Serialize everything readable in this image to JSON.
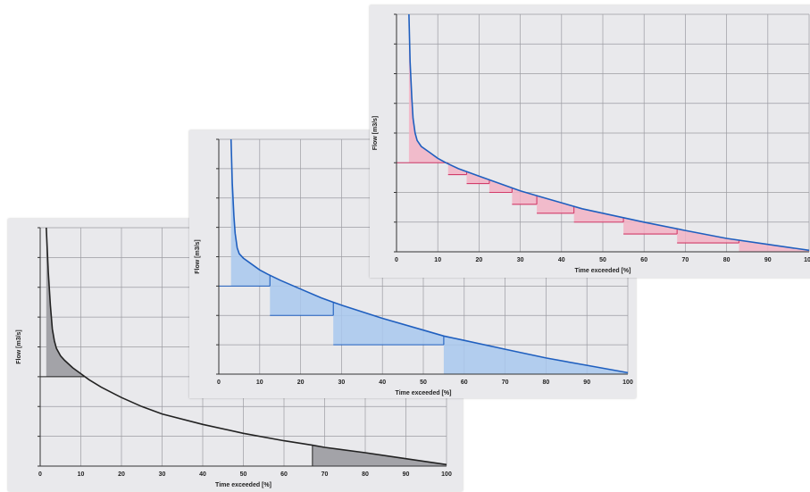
{
  "colors": {
    "panel_bg": "#e9e9ec",
    "curve_gray": "#222222",
    "fill_gray": "#a3a3a8",
    "curve_blue": "#1f5fbf",
    "fill_blue": "#a8c8ee",
    "curve_pink": "#1f5fbf",
    "fill_pink": "#f2b3c6",
    "step_pink": "#d23c6a"
  },
  "chart_data": [
    {
      "id": "chart-gray",
      "type": "line",
      "xlabel": "Time exceeded [%]",
      "ylabel": "Flow [m3/s]",
      "xlim": [
        0,
        100
      ],
      "ylim": [
        0,
        8
      ],
      "x_ticks": [
        "0",
        "10",
        "20",
        "30",
        "40",
        "50",
        "60",
        "70",
        "80",
        "90",
        "100"
      ],
      "grid": true,
      "curve_color_key": "curve_gray",
      "fill_color_key": "fill_gray",
      "series": [
        {
          "x": [
            1.5,
            2,
            2.5,
            3,
            3.5,
            4,
            5,
            6,
            8,
            10,
            12,
            15,
            20,
            25,
            30,
            40,
            50,
            60,
            67,
            70,
            80,
            90,
            100
          ],
          "y": [
            8,
            6.5,
            5.4,
            4.6,
            4.2,
            3.95,
            3.7,
            3.55,
            3.3,
            3.1,
            2.9,
            2.65,
            2.3,
            2.0,
            1.75,
            1.4,
            1.1,
            0.85,
            0.7,
            0.63,
            0.45,
            0.25,
            0.05
          ]
        }
      ],
      "threshold_y": 3.0,
      "marker_x": 67
    },
    {
      "id": "chart-blue",
      "type": "line",
      "xlabel": "Time exceeded [%]",
      "ylabel": "Flow [m3/s]",
      "xlim": [
        0,
        100
      ],
      "ylim": [
        0,
        8
      ],
      "x_ticks": [
        "0",
        "10",
        "20",
        "30",
        "40",
        "50",
        "60",
        "70",
        "80",
        "90",
        "100"
      ],
      "grid": true,
      "curve_color_key": "curve_blue",
      "fill_color_key": "fill_blue",
      "series": [
        {
          "x": [
            3,
            3.3,
            3.7,
            4,
            4.5,
            5,
            6,
            8,
            10,
            12,
            15,
            20,
            25,
            28,
            30,
            40,
            50,
            55,
            60,
            70,
            80,
            90,
            100
          ],
          "y": [
            8,
            6.5,
            5.4,
            4.8,
            4.3,
            4.1,
            3.95,
            3.75,
            3.55,
            3.4,
            3.2,
            2.9,
            2.6,
            2.45,
            2.35,
            1.9,
            1.5,
            1.3,
            1.15,
            0.85,
            0.55,
            0.3,
            0.05
          ]
        }
      ],
      "steps": [
        {
          "x0": 0,
          "x1": 12.5,
          "y": 3.0
        },
        {
          "x0": 12.5,
          "x1": 28,
          "y": 2.0
        },
        {
          "x0": 28,
          "x1": 55,
          "y": 1.0
        },
        {
          "x0": 55,
          "x1": 100,
          "y": 0.0
        }
      ]
    },
    {
      "id": "chart-pink",
      "type": "line",
      "xlabel": "Time exceeded [%]",
      "ylabel": "Flow [m3/s]",
      "xlim": [
        0,
        100
      ],
      "ylim": [
        0,
        8
      ],
      "x_ticks": [
        "0",
        "10",
        "20",
        "30",
        "40",
        "50",
        "60",
        "70",
        "80",
        "90",
        "100"
      ],
      "grid": true,
      "curve_color_key": "curve_pink",
      "fill_color_key": "fill_pink",
      "step_color_key": "step_pink",
      "series": [
        {
          "x": [
            3,
            3.3,
            3.7,
            4,
            4.5,
            5,
            6,
            8,
            10,
            12,
            15,
            20,
            25,
            30,
            35,
            40,
            45,
            50,
            60,
            70,
            80,
            90,
            100
          ],
          "y": [
            8,
            6.4,
            5.2,
            4.5,
            4.0,
            3.75,
            3.55,
            3.35,
            3.15,
            3.0,
            2.8,
            2.55,
            2.3,
            2.05,
            1.85,
            1.65,
            1.45,
            1.3,
            1.0,
            0.72,
            0.45,
            0.25,
            0.05
          ]
        }
      ],
      "steps": [
        {
          "x0": 0,
          "x1": 12.5,
          "y": 3.0
        },
        {
          "x0": 12.5,
          "x1": 17,
          "y": 2.6
        },
        {
          "x0": 17,
          "x1": 22.5,
          "y": 2.3
        },
        {
          "x0": 22.5,
          "x1": 28,
          "y": 2.0
        },
        {
          "x0": 28,
          "x1": 34,
          "y": 1.6
        },
        {
          "x0": 34,
          "x1": 43,
          "y": 1.3
        },
        {
          "x0": 43,
          "x1": 55,
          "y": 1.0
        },
        {
          "x0": 55,
          "x1": 68,
          "y": 0.6
        },
        {
          "x0": 68,
          "x1": 83,
          "y": 0.3
        },
        {
          "x0": 83,
          "x1": 100,
          "y": 0.0
        }
      ]
    }
  ]
}
